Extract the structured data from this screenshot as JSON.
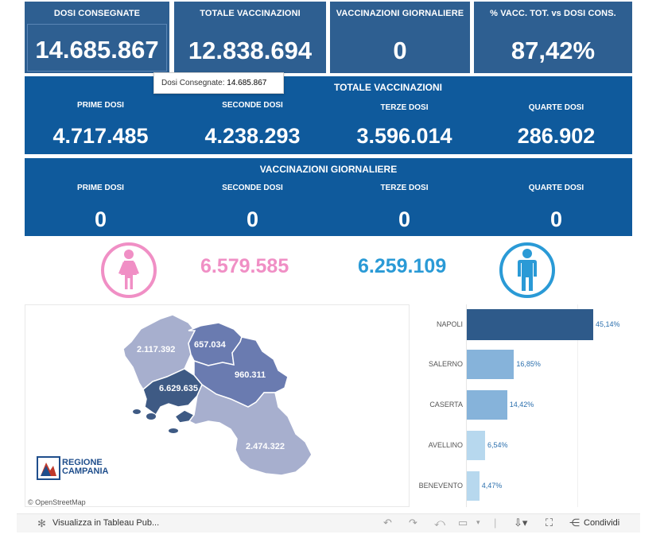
{
  "kpis": [
    {
      "label": "DOSI  CONSEGNATE",
      "value": "14.685.867"
    },
    {
      "label": "TOTALE VACCINAZIONI",
      "value": "12.838.694"
    },
    {
      "label": "VACCINAZIONI GIORNALIERE",
      "value": "0"
    },
    {
      "label": "% VACC. TOT. vs DOSI CONS.",
      "value": "87,42%"
    }
  ],
  "tooltip": {
    "label": "Dosi Consegnate:",
    "value": "14.685.867"
  },
  "totals_band": {
    "title": "TOTALE VACCINAZIONI",
    "cols": [
      {
        "label": "PRIME DOSI",
        "value": "4.717.485"
      },
      {
        "label": "SECONDE DOSI",
        "value": "4.238.293"
      },
      {
        "label": "TERZE DOSI",
        "value": "3.596.014"
      },
      {
        "label": "QUARTE DOSI",
        "value": "286.902"
      }
    ]
  },
  "daily_band": {
    "title": "VACCINAZIONI GIORNALIERE",
    "cols": [
      {
        "label": "PRIME DOSI",
        "value": "0"
      },
      {
        "label": "SECONDE DOSI",
        "value": "0"
      },
      {
        "label": "TERZE DOSI",
        "value": "0"
      },
      {
        "label": "QUARTE DOSI",
        "value": "0"
      }
    ]
  },
  "gender": {
    "female_value": "6.579.585",
    "male_value": "6.259.109",
    "female_color": "#f08fc5",
    "male_color": "#2a9ad6"
  },
  "map": {
    "provinces": [
      {
        "name": "Caserta",
        "value": "2.117.392",
        "color": "#a7afce"
      },
      {
        "name": "Benevento",
        "value": "657.034",
        "color": "#6a7bb0"
      },
      {
        "name": "Avellino",
        "value": "960.311",
        "color": "#6a7bb0"
      },
      {
        "name": "Napoli",
        "value": "6.629.635",
        "color": "#3e5a84"
      },
      {
        "name": "Salerno",
        "value": "2.474.322",
        "color": "#a7afce"
      }
    ],
    "logo_line1": "REGIONE",
    "logo_line2": "CAMPANIA",
    "attribution": "© OpenStreetMap"
  },
  "chart_data": {
    "type": "bar",
    "orientation": "horizontal",
    "categories": [
      "NAPOLI",
      "SALERNO",
      "CASERTA",
      "AVELLINO",
      "BENEVENTO"
    ],
    "values": [
      45.14,
      16.85,
      14.42,
      6.54,
      4.47
    ],
    "labels": [
      "45,14%",
      "16,85%",
      "14,42%",
      "6,54%",
      "4,47%"
    ],
    "colors": [
      "#2e5a8a",
      "#86b3da",
      "#86b3da",
      "#b7d8ee",
      "#b7d8ee"
    ],
    "xlim": [
      0,
      60
    ]
  },
  "toolbar": {
    "view_label": "Visualizza in Tableau Pub...",
    "share_label": "Condividi"
  }
}
